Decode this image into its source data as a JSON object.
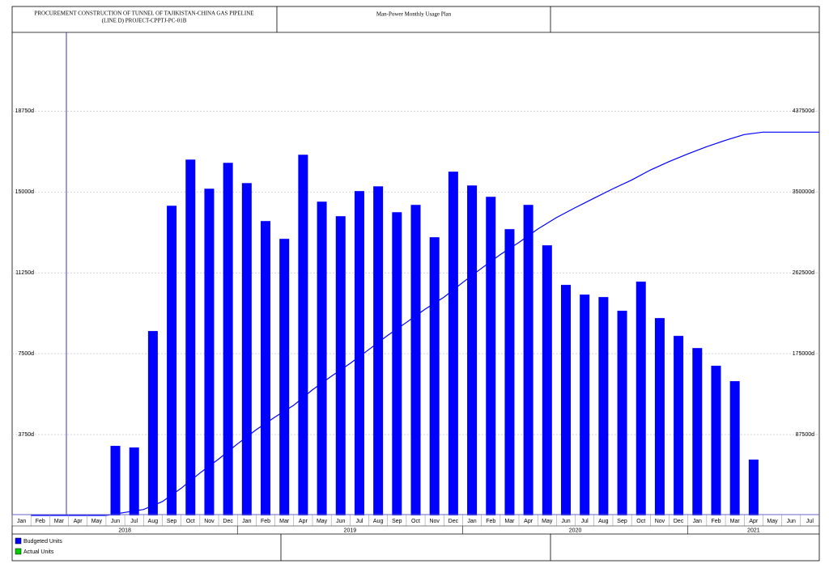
{
  "chart_data": {
    "type": "bar",
    "title": "PROCUREMENT CONSTRUCTION OF TUNNEL OF TAJIKISTAN-CHINA GAS PIPELINE",
    "title_line2": "(LINE D) PROJECT-CPPTJ-PC-01B",
    "subtitle": "Man-Power Monthly Usage Plan",
    "categories": [
      "Jan",
      "Feb",
      "Mar",
      "Apr",
      "May",
      "Jun",
      "Jul",
      "Aug",
      "Sep",
      "Oct",
      "Nov",
      "Dec",
      "Jan",
      "Feb",
      "Mar",
      "Apr",
      "May",
      "Jun",
      "Jul",
      "Aug",
      "Sep",
      "Oct",
      "Nov",
      "Dec",
      "Jan",
      "Feb",
      "Mar",
      "Apr",
      "May",
      "Jun",
      "Jul",
      "Aug",
      "Sep",
      "Oct",
      "Nov",
      "Dec",
      "Jan",
      "Feb",
      "Mar",
      "Apr",
      "May",
      "Jun",
      "Jul"
    ],
    "years": [
      "2018",
      "2019",
      "2020",
      "2021"
    ],
    "series": [
      {
        "type": "bar",
        "color": "#0000ff",
        "values": [
          0,
          0,
          0,
          0,
          0,
          3225,
          3150,
          8550,
          14360,
          16500,
          15150,
          16350,
          15410,
          13650,
          12825,
          16725,
          14550,
          13875,
          15040,
          15260,
          14060,
          14400,
          12900,
          15940,
          15300,
          14775,
          13275,
          14400,
          12525,
          10690,
          10240,
          10125,
          9490,
          10840,
          9150,
          8325,
          7760,
          6940,
          6225,
          2590,
          0,
          0,
          0
        ]
      },
      {
        "type": "line",
        "color": "#0000ff",
        "axis": "y2",
        "values": [
          0,
          0,
          0,
          0,
          0,
          3225,
          6375,
          14925,
          29285,
          45785,
          60935,
          77285,
          92695,
          106345,
          119170,
          135895,
          150445,
          164320,
          179360,
          194620,
          208680,
          223080,
          235980,
          251920,
          267220,
          281995,
          295270,
          309670,
          322195,
          332885,
          343125,
          353250,
          362740,
          373580,
          382730,
          391055,
          398815,
          405755,
          411980,
          414570,
          414570,
          414570,
          414570
        ]
      }
    ],
    "legend": [
      {
        "name": "Budgeted Units",
        "color": "#0000ff"
      },
      {
        "name": "Actual Units",
        "color": "#00cc00"
      }
    ],
    "ylim": [
      0,
      22400
    ],
    "yticks": [
      {
        "value": 3750,
        "label": "3750d"
      },
      {
        "value": 7500,
        "label": "7500d"
      },
      {
        "value": 11250,
        "label": "11250d"
      },
      {
        "value": 15000,
        "label": "15000d"
      },
      {
        "value": 18750,
        "label": "18750d"
      }
    ],
    "y2lim": [
      0,
      522500
    ],
    "y2ticks": [
      {
        "value": 87500,
        "label": "87500d"
      },
      {
        "value": 175000,
        "label": "175000d"
      },
      {
        "value": 262500,
        "label": "262500d"
      },
      {
        "value": 350000,
        "label": "350000d"
      },
      {
        "value": 437500,
        "label": "437500d"
      }
    ],
    "grid": true
  }
}
